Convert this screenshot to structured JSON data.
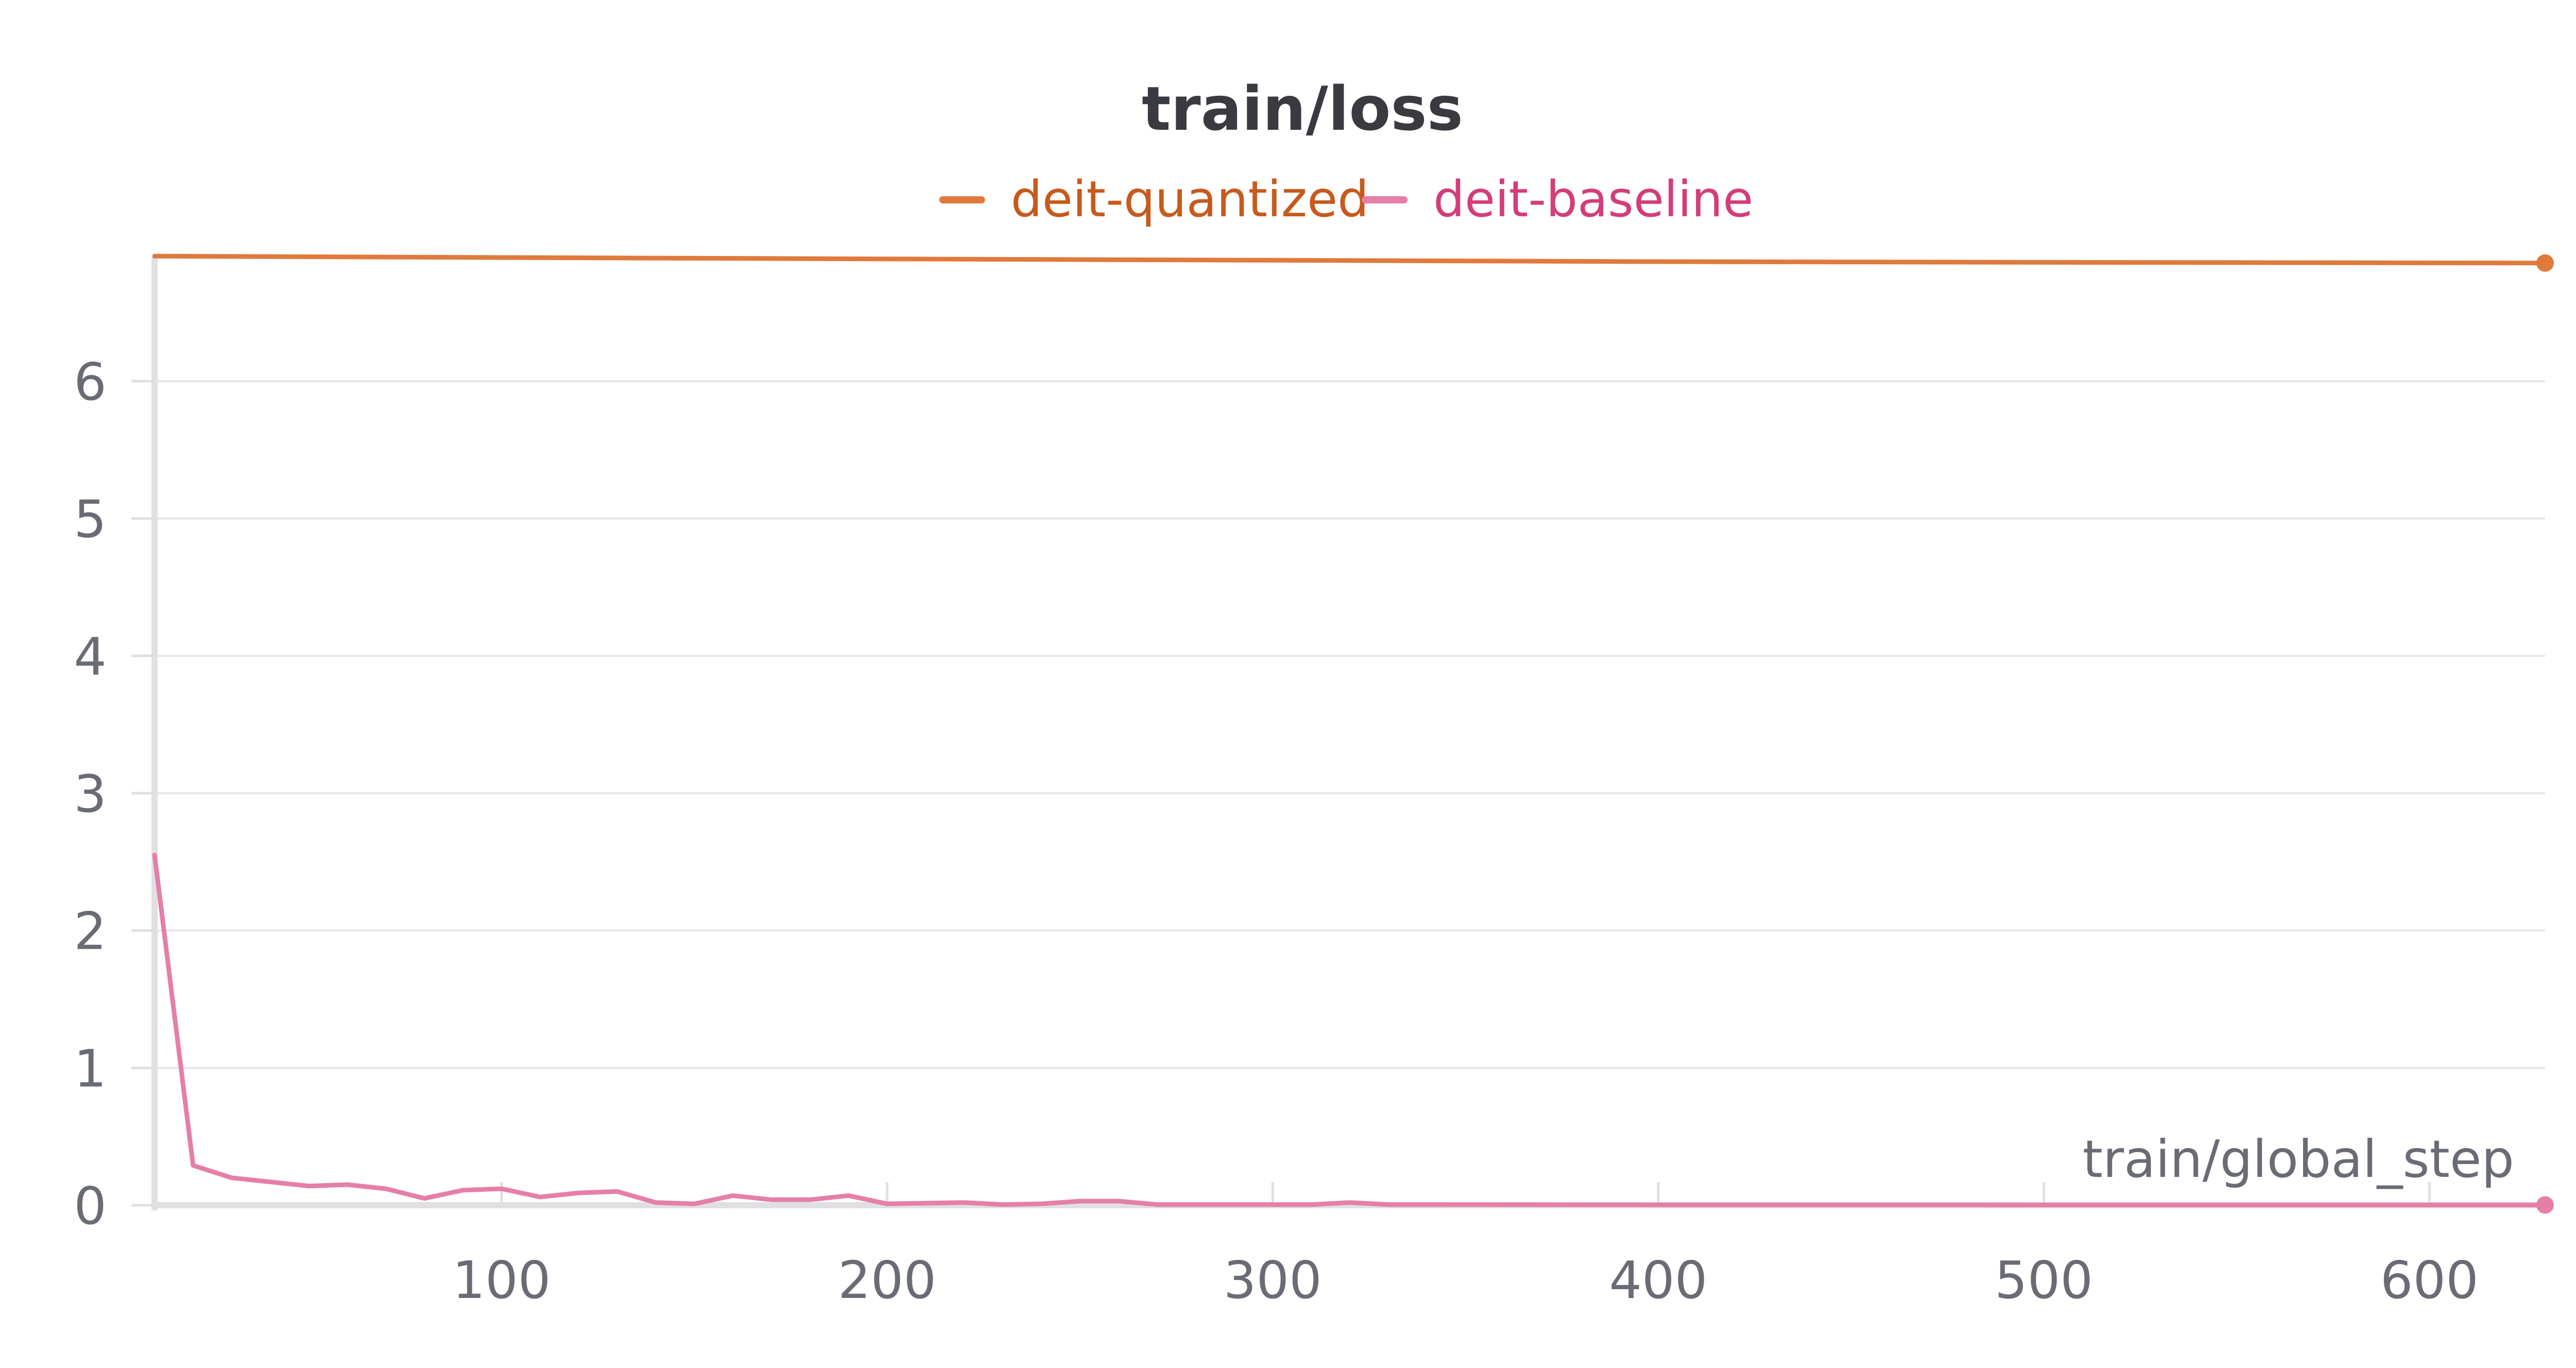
{
  "chart_data": {
    "type": "line",
    "title": "train/loss",
    "xlabel": "train/global_step",
    "ylabel": "",
    "xlim": [
      10,
      630
    ],
    "ylim": [
      0,
      6.9
    ],
    "x_ticks": [
      100,
      200,
      300,
      400,
      500,
      600
    ],
    "y_ticks": [
      0,
      1,
      2,
      3,
      4,
      5,
      6
    ],
    "grid": true,
    "legend_position": "top-center",
    "series": [
      {
        "name": "deit-quantized",
        "color": "#e07a3c",
        "label_color": "#c75a1c",
        "points": [
          [
            10,
            6.91
          ],
          [
            100,
            6.9
          ],
          [
            200,
            6.89
          ],
          [
            300,
            6.88
          ],
          [
            400,
            6.87
          ],
          [
            500,
            6.865
          ],
          [
            630,
            6.86
          ]
        ]
      },
      {
        "name": "deit-baseline",
        "color": "#e57fa8",
        "label_color": "#d43d7a",
        "points": [
          [
            10,
            2.55
          ],
          [
            20,
            0.29
          ],
          [
            30,
            0.2
          ],
          [
            40,
            0.17
          ],
          [
            50,
            0.14
          ],
          [
            60,
            0.15
          ],
          [
            70,
            0.12
          ],
          [
            80,
            0.05
          ],
          [
            90,
            0.11
          ],
          [
            100,
            0.12
          ],
          [
            110,
            0.06
          ],
          [
            120,
            0.09
          ],
          [
            130,
            0.1
          ],
          [
            140,
            0.02
          ],
          [
            150,
            0.01
          ],
          [
            160,
            0.07
          ],
          [
            170,
            0.04
          ],
          [
            180,
            0.04
          ],
          [
            190,
            0.07
          ],
          [
            200,
            0.01
          ],
          [
            210,
            0.015
          ],
          [
            220,
            0.02
          ],
          [
            230,
            0.005
          ],
          [
            240,
            0.01
          ],
          [
            250,
            0.03
          ],
          [
            260,
            0.03
          ],
          [
            270,
            0.005
          ],
          [
            280,
            0.005
          ],
          [
            290,
            0.005
          ],
          [
            300,
            0.005
          ],
          [
            310,
            0.005
          ],
          [
            320,
            0.02
          ],
          [
            330,
            0.005
          ],
          [
            400,
            0.003
          ],
          [
            500,
            0.002
          ],
          [
            630,
            0.002
          ]
        ]
      }
    ]
  }
}
